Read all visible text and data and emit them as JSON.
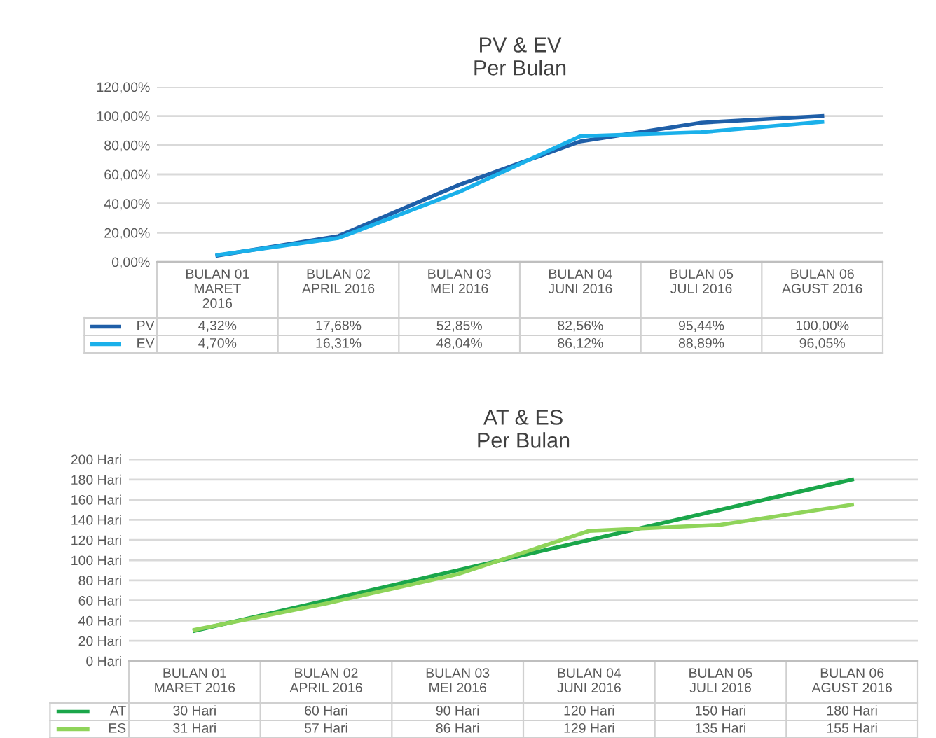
{
  "chart_data": [
    {
      "type": "line",
      "title": "PV & EV\nPer Bulan",
      "categories": [
        "BULAN 01\nMARET\n2016",
        "BULAN 02\nAPRIL 2016",
        "BULAN 03\nMEI 2016",
        "BULAN 04\nJUNI 2016",
        "BULAN 05\nJULI 2016",
        "BULAN 06\nAGUST 2016"
      ],
      "series": [
        {
          "name": "PV",
          "color": "#1f5fa8",
          "values": [
            4.32,
            17.68,
            52.85,
            82.56,
            95.44,
            100.0
          ],
          "value_labels": [
            "4,32%",
            "17,68%",
            "52,85%",
            "82,56%",
            "95,44%",
            "100,00%"
          ]
        },
        {
          "name": "EV",
          "color": "#1ab0ea",
          "values": [
            4.7,
            16.31,
            48.04,
            86.12,
            88.89,
            96.05
          ],
          "value_labels": [
            "4,70%",
            "16,31%",
            "48,04%",
            "86,12%",
            "88,89%",
            "96,05%"
          ]
        }
      ],
      "ylim": [
        0,
        120
      ],
      "yticks": [
        {
          "value": 0,
          "label": "0,00%"
        },
        {
          "value": 20,
          "label": "20,00%"
        },
        {
          "value": 40,
          "label": "40,00%"
        },
        {
          "value": 60,
          "label": "60,00%"
        },
        {
          "value": 80,
          "label": "80,00%"
        },
        {
          "value": 100,
          "label": "100,00%"
        },
        {
          "value": 120,
          "label": "120,00%"
        }
      ],
      "grid": "y",
      "legend": "bottom",
      "marker": "none",
      "line_style": "solid"
    },
    {
      "type": "line",
      "title": "AT & ES\nPer Bulan",
      "categories": [
        "BULAN 01\nMARET 2016",
        "BULAN 02\nAPRIL 2016",
        "BULAN 03\nMEI 2016",
        "BULAN 04\nJUNI 2016",
        "BULAN 05\nJULI 2016",
        "BULAN 06\nAGUST 2016"
      ],
      "series": [
        {
          "name": "AT",
          "color": "#1aa64a",
          "values": [
            30,
            60,
            90,
            120,
            150,
            180
          ],
          "value_labels": [
            "30 Hari",
            "60 Hari",
            "90 Hari",
            "120 Hari",
            "150 Hari",
            "180 Hari"
          ]
        },
        {
          "name": "ES",
          "color": "#8fd45a",
          "values": [
            31,
            57,
            86,
            129,
            135,
            155
          ],
          "value_labels": [
            "31 Hari",
            "57 Hari",
            "86 Hari",
            "129 Hari",
            "135 Hari",
            "155 Hari"
          ]
        }
      ],
      "ylim": [
        0,
        200
      ],
      "yticks": [
        {
          "value": 0,
          "label": "0 Hari"
        },
        {
          "value": 20,
          "label": "20 Hari"
        },
        {
          "value": 40,
          "label": "40 Hari"
        },
        {
          "value": 60,
          "label": "60 Hari"
        },
        {
          "value": 80,
          "label": "80 Hari"
        },
        {
          "value": 100,
          "label": "100 Hari"
        },
        {
          "value": 120,
          "label": "120 Hari"
        },
        {
          "value": 140,
          "label": "140 Hari"
        },
        {
          "value": 160,
          "label": "160 Hari"
        },
        {
          "value": 180,
          "label": "180 Hari"
        },
        {
          "value": 200,
          "label": "200 Hari"
        }
      ],
      "grid": "y",
      "legend": "bottom",
      "marker": "none",
      "line_style": "solid"
    }
  ]
}
